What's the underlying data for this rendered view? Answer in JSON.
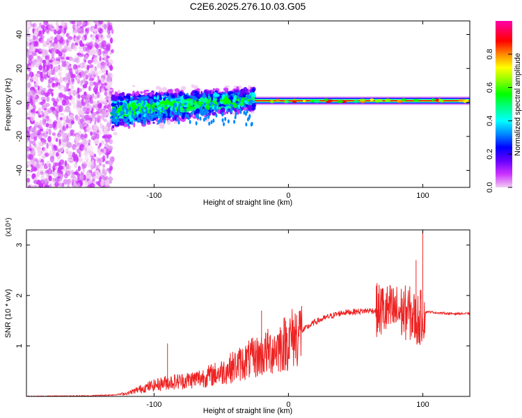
{
  "title": "C2E6.2025.276.10.03.G05",
  "chart_data": [
    {
      "type": "heatmap",
      "xlabel": "Height of straight line (km)",
      "ylabel": "Frequency (Hz)",
      "xlim": [
        -195,
        135
      ],
      "ylim": [
        -50,
        48
      ],
      "x_ticks": [
        -100,
        0,
        100
      ],
      "x_tick_labels": [
        "-100",
        "0",
        "100"
      ],
      "y_ticks": [
        -40,
        -20,
        0,
        20,
        40
      ],
      "y_tick_labels": [
        "-40",
        "-20",
        "0",
        "20",
        "40"
      ],
      "colorbar": {
        "label": "Normalized spectral amplitude",
        "range": [
          0,
          1
        ],
        "ticks": [
          0.0,
          0.2,
          0.4,
          0.6,
          0.8
        ],
        "tick_labels": [
          "0.0",
          "0.2",
          "0.4",
          "0.6",
          "0.8"
        ],
        "colors": [
          "#f2ccf2",
          "#cc33ff",
          "#6600ff",
          "#0000ff",
          "#0088ff",
          "#00ffff",
          "#00ff88",
          "#00ff00",
          "#88ff00",
          "#ffff00",
          "#ff8800",
          "#ff0000",
          "#ff00aa"
        ]
      },
      "regions": [
        {
          "name": "noise",
          "x_range": [
            -195,
            -131
          ],
          "f_range": [
            -50,
            48
          ],
          "amplitude": 0.2
        },
        {
          "name": "transition",
          "x_range": [
            -131,
            -25
          ],
          "f_center_start": -5,
          "f_center_end": 2,
          "bandwidth_start": 10,
          "bandwidth_end": 6,
          "amplitude": 0.35
        },
        {
          "name": "signal",
          "x_range": [
            -25,
            135
          ],
          "f_center": 1,
          "bandwidth": 2,
          "amplitude": 0.95
        }
      ]
    },
    {
      "type": "line",
      "xlabel": "Height of straight line (km)",
      "ylabel": "SNR (10 * v/v)",
      "scale_label": "(x10⁴)",
      "xlim": [
        -195,
        135
      ],
      "ylim": [
        0,
        3.3
      ],
      "x_ticks": [
        -100,
        0,
        100
      ],
      "x_tick_labels": [
        "-100",
        "0",
        "100"
      ],
      "y_ticks": [
        1,
        2,
        3
      ],
      "y_tick_labels": [
        "1",
        "2",
        "3"
      ],
      "line_color": "#ee2222",
      "series": [
        {
          "name": "SNR",
          "x": [
            -195,
            -150,
            -130,
            -120,
            -110,
            -100,
            -90,
            -80,
            -70,
            -60,
            -50,
            -40,
            -30,
            -20,
            -10,
            0,
            10,
            20,
            30,
            40,
            50,
            60,
            70,
            80,
            90,
            96,
            100,
            103,
            110,
            120,
            135
          ],
          "values": [
            0.0,
            0.01,
            0.03,
            0.06,
            0.15,
            0.22,
            0.28,
            0.3,
            0.34,
            0.4,
            0.48,
            0.6,
            0.72,
            0.82,
            0.94,
            1.1,
            1.3,
            1.48,
            1.58,
            1.66,
            1.68,
            1.7,
            1.7,
            1.68,
            1.65,
            1.5,
            1.62,
            1.68,
            1.66,
            1.64,
            1.64
          ]
        }
      ],
      "spikes": [
        {
          "x": -90,
          "value": 1.05
        },
        {
          "x": -20,
          "value": 1.7
        },
        {
          "x": 70,
          "value": 2.15
        },
        {
          "x": 95,
          "value": 2.7
        },
        {
          "x": 100,
          "value": 3.3
        }
      ]
    }
  ]
}
